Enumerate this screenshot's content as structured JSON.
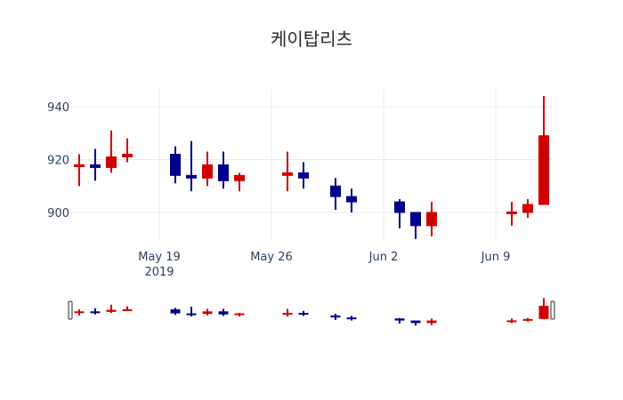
{
  "chart_data": {
    "type": "candlestick",
    "title": "케이탑리츠",
    "xlabel": "",
    "ylabel": "",
    "ylim": [
      886,
      947
    ],
    "yticks": [
      900,
      920,
      940
    ],
    "xticks": [
      {
        "label": "May 19",
        "sublabel": "2019",
        "date": "2019-05-19"
      },
      {
        "label": "May 26",
        "sublabel": "",
        "date": "2019-05-26"
      },
      {
        "label": "Jun 2",
        "sublabel": "",
        "date": "2019-06-02"
      },
      {
        "label": "Jun 9",
        "sublabel": "",
        "date": "2019-06-09"
      }
    ],
    "grid": true,
    "rangeslider": true,
    "increasing_color": "#d00000",
    "decreasing_color": "#00008b",
    "data": [
      {
        "date": "2019-05-14",
        "open": 917.5,
        "high": 922,
        "low": 910,
        "close": 918
      },
      {
        "date": "2019-05-15",
        "open": 918,
        "high": 924,
        "low": 912,
        "close": 917
      },
      {
        "date": "2019-05-16",
        "open": 917,
        "high": 931,
        "low": 915,
        "close": 921
      },
      {
        "date": "2019-05-17",
        "open": 921,
        "high": 928,
        "low": 919,
        "close": 922
      },
      {
        "date": "2019-05-20",
        "open": 922,
        "high": 925,
        "low": 911,
        "close": 914
      },
      {
        "date": "2019-05-21",
        "open": 914,
        "high": 927,
        "low": 908,
        "close": 913
      },
      {
        "date": "2019-05-22",
        "open": 913,
        "high": 923,
        "low": 910,
        "close": 918
      },
      {
        "date": "2019-05-23",
        "open": 918,
        "high": 923,
        "low": 909,
        "close": 912
      },
      {
        "date": "2019-05-24",
        "open": 912,
        "high": 915,
        "low": 908,
        "close": 914
      },
      {
        "date": "2019-05-27",
        "open": 914,
        "high": 923,
        "low": 908,
        "close": 915
      },
      {
        "date": "2019-05-28",
        "open": 915,
        "high": 919,
        "low": 909,
        "close": 913
      },
      {
        "date": "2019-05-30",
        "open": 910,
        "high": 913,
        "low": 901,
        "close": 906
      },
      {
        "date": "2019-05-31",
        "open": 906,
        "high": 909,
        "low": 900,
        "close": 904
      },
      {
        "date": "2019-06-03",
        "open": 904,
        "high": 905,
        "low": 894,
        "close": 900
      },
      {
        "date": "2019-06-04",
        "open": 900,
        "high": 900,
        "low": 890,
        "close": 895
      },
      {
        "date": "2019-06-05",
        "open": 895,
        "high": 904,
        "low": 891,
        "close": 900
      },
      {
        "date": "2019-06-10",
        "open": 900,
        "high": 904,
        "low": 895,
        "close": 900.2
      },
      {
        "date": "2019-06-11",
        "open": 900,
        "high": 905,
        "low": 898,
        "close": 903
      },
      {
        "date": "2019-06-12",
        "open": 903,
        "high": 944,
        "low": 903,
        "close": 929
      }
    ]
  }
}
